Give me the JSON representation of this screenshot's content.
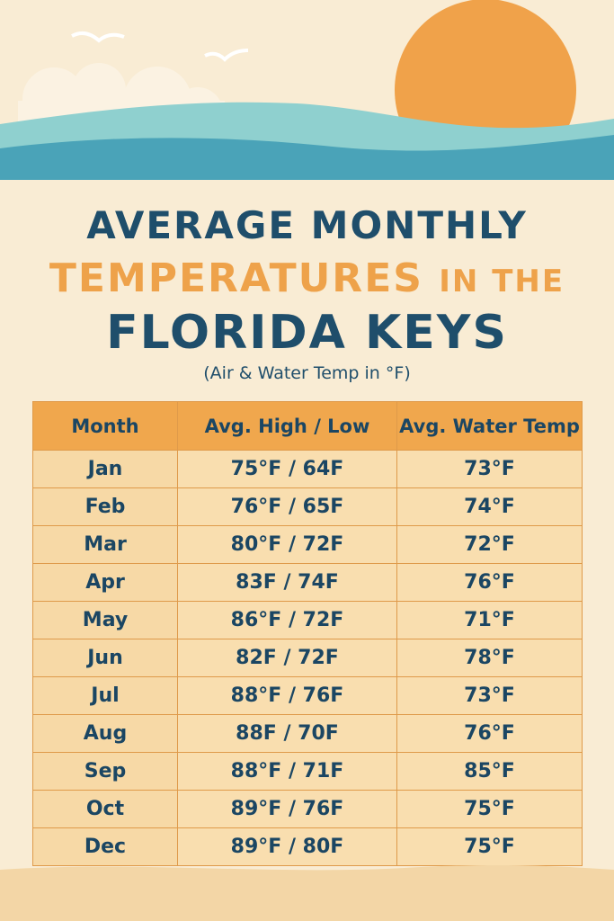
{
  "title": {
    "line1": "AVERAGE MONTHLY",
    "line2_main": "TEMPERATURES",
    "line2_small": "IN THE",
    "line3": "FLORIDA KEYS"
  },
  "subtitle": "(Air & Water Temp in °F)",
  "colors": {
    "navy": "#1f4e6b",
    "orange": "#eea24a",
    "sun": "#f0a24a",
    "wave_light": "#8fd0cf",
    "wave_dark": "#4aa3b8",
    "background": "#f9ecd4",
    "sand": "#f3d6a6"
  },
  "chart_data": {
    "type": "table",
    "columns": [
      "Month",
      "Avg. High / Low",
      "Avg. Water Temp"
    ],
    "rows": [
      [
        "Jan",
        "75°F / 64F",
        "73°F"
      ],
      [
        "Feb",
        "76°F / 65F",
        "74°F"
      ],
      [
        "Mar",
        "80°F / 72F",
        "72°F"
      ],
      [
        "Apr",
        "83F / 74F",
        "76°F"
      ],
      [
        "May",
        "86°F / 72F",
        "71°F"
      ],
      [
        "Jun",
        "82F / 72F",
        "78°F"
      ],
      [
        "Jul",
        "88°F / 76F",
        "73°F"
      ],
      [
        "Aug",
        "88F / 70F",
        "76°F"
      ],
      [
        "Sep",
        "88°F / 71F",
        "85°F"
      ],
      [
        "Oct",
        "89°F / 76F",
        "75°F"
      ],
      [
        "Dec",
        "89°F / 80F",
        "75°F"
      ]
    ]
  }
}
